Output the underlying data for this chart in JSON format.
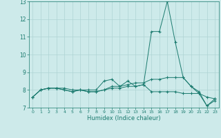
{
  "line1": [
    7.6,
    8.0,
    8.1,
    8.1,
    8.1,
    8.0,
    8.0,
    8.0,
    8.0,
    8.5,
    8.6,
    8.2,
    8.5,
    8.2,
    8.3,
    11.3,
    11.3,
    13.0,
    10.7,
    8.7,
    8.2,
    7.9,
    7.1,
    7.5
  ],
  "line2": [
    7.6,
    8.0,
    8.1,
    8.1,
    8.0,
    7.9,
    8.0,
    7.9,
    7.9,
    8.0,
    8.2,
    8.2,
    8.3,
    8.4,
    8.4,
    8.6,
    8.6,
    8.7,
    8.7,
    8.7,
    8.2,
    7.8,
    7.6,
    7.5
  ],
  "line3": [
    7.6,
    8.0,
    8.1,
    8.1,
    8.0,
    7.9,
    8.0,
    7.9,
    7.9,
    8.0,
    8.1,
    8.1,
    8.2,
    8.2,
    8.3,
    7.9,
    7.9,
    7.9,
    7.9,
    7.8,
    7.8,
    7.8,
    7.1,
    7.4
  ],
  "x": [
    0,
    1,
    2,
    3,
    4,
    5,
    6,
    7,
    8,
    9,
    10,
    11,
    12,
    13,
    14,
    15,
    16,
    17,
    18,
    19,
    20,
    21,
    22,
    23
  ],
  "color": "#1a7a6e",
  "xlabel": "Humidex (Indice chaleur)",
  "ylim": [
    7,
    13
  ],
  "xlim_min": -0.5,
  "xlim_max": 23.5,
  "yticks": [
    7,
    8,
    9,
    10,
    11,
    12,
    13
  ],
  "xticks": [
    0,
    1,
    2,
    3,
    4,
    5,
    6,
    7,
    8,
    9,
    10,
    11,
    12,
    13,
    14,
    15,
    16,
    17,
    18,
    19,
    20,
    21,
    22,
    23
  ],
  "bg_color": "#cdeaea",
  "grid_color": "#aed4d4"
}
